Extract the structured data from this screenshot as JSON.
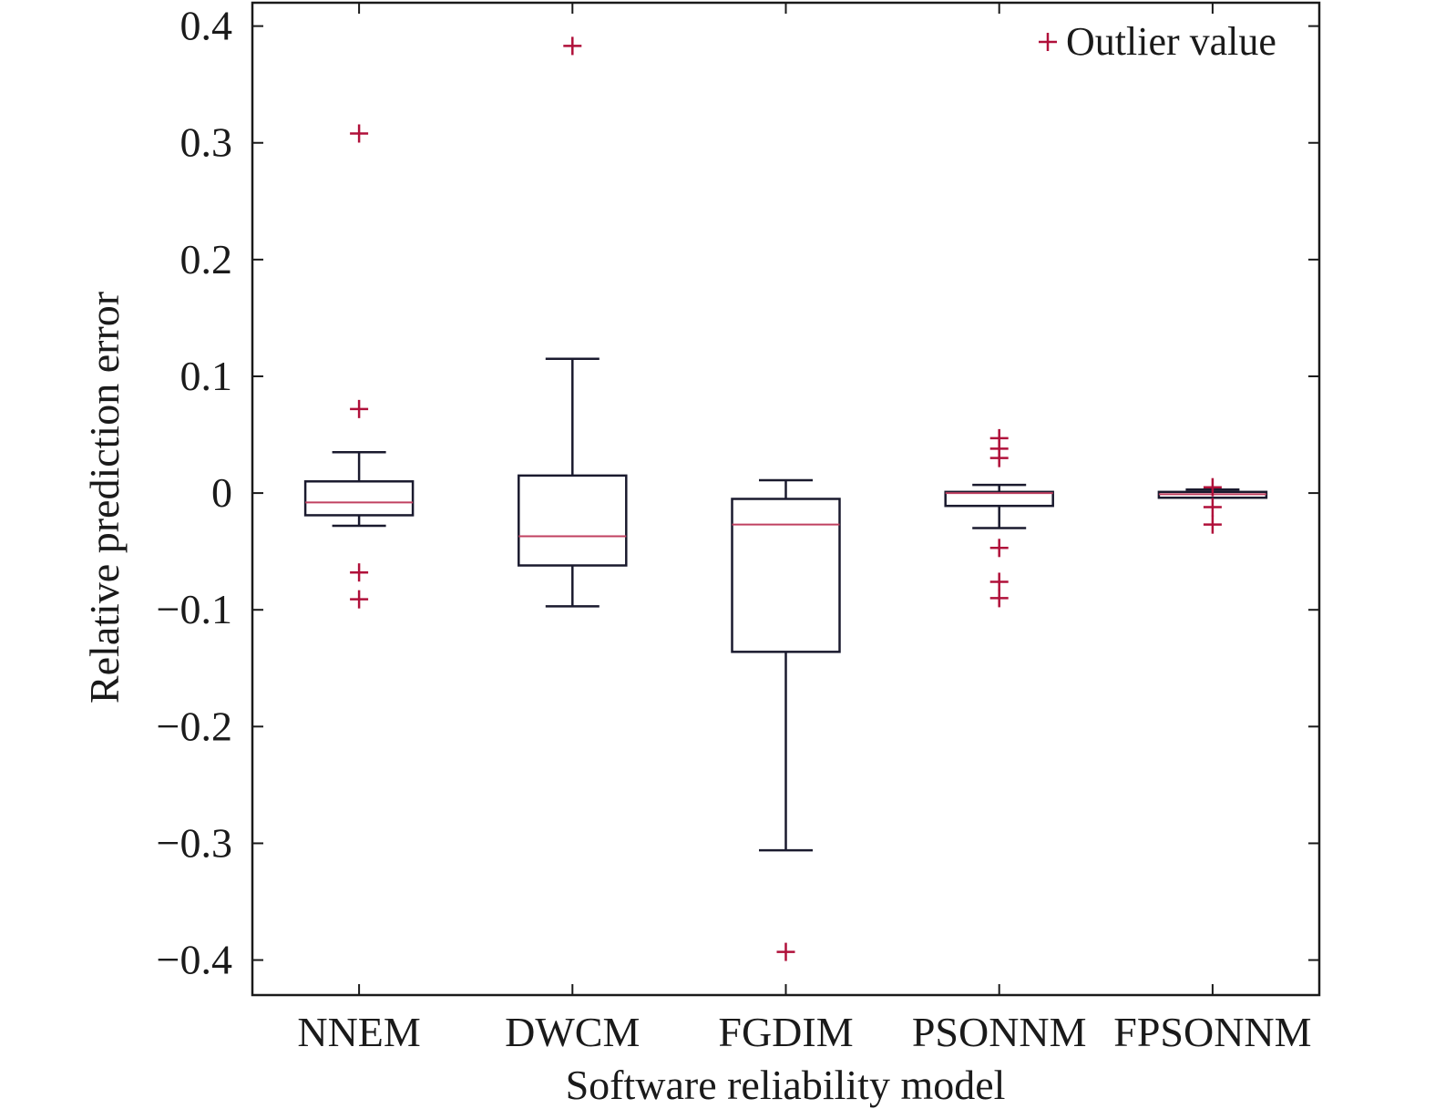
{
  "colors": {
    "box": "#1a1a2e",
    "median": "#c04060",
    "outlier": "#b0103a",
    "axis": "#1a1a1a",
    "background": "#ffffff"
  },
  "chart_data": {
    "type": "box",
    "title": "",
    "xlabel": "Software reliability model",
    "ylabel": "Relative prediction error",
    "ylim": [
      -0.43,
      0.42
    ],
    "yticks": [
      0.4,
      0.3,
      0.2,
      0.1,
      0,
      -0.1,
      -0.2,
      -0.3,
      -0.4
    ],
    "ytick_labels": [
      "0.4",
      "0.3",
      "0.2",
      "0.1",
      "0",
      "−0.1",
      "−0.2",
      "−0.3",
      "−0.4"
    ],
    "categories": [
      "NNEM",
      "DWCM",
      "FGDIM",
      "PSONNM",
      "FPSONNM"
    ],
    "grid": false,
    "legend": {
      "label": "Outlier value",
      "marker": "+",
      "placement": "top-right"
    },
    "boxes": [
      {
        "name": "NNEM",
        "whisker_low": -0.028,
        "q1": -0.019,
        "median": -0.008,
        "q3": 0.01,
        "whisker_high": 0.035,
        "outliers": [
          0.308,
          0.072,
          -0.068,
          -0.091
        ]
      },
      {
        "name": "DWCM",
        "whisker_low": -0.097,
        "q1": -0.062,
        "median": -0.037,
        "q3": 0.015,
        "whisker_high": 0.115,
        "outliers": [
          0.383
        ]
      },
      {
        "name": "FGDIM",
        "whisker_low": -0.306,
        "q1": -0.136,
        "median": -0.027,
        "q3": -0.005,
        "whisker_high": 0.011,
        "outliers": [
          -0.393
        ]
      },
      {
        "name": "PSONNM",
        "whisker_low": -0.03,
        "q1": -0.011,
        "median": 0.0,
        "q3": 0.001,
        "whisker_high": 0.007,
        "outliers": [
          0.047,
          0.038,
          0.03,
          -0.047,
          -0.076,
          -0.09
        ]
      },
      {
        "name": "FPSONNM",
        "whisker_low": -0.004,
        "q1": -0.004,
        "median": -0.001,
        "q3": 0.001,
        "whisker_high": 0.003,
        "outliers": [
          0.005,
          -0.012,
          -0.027
        ]
      }
    ]
  }
}
